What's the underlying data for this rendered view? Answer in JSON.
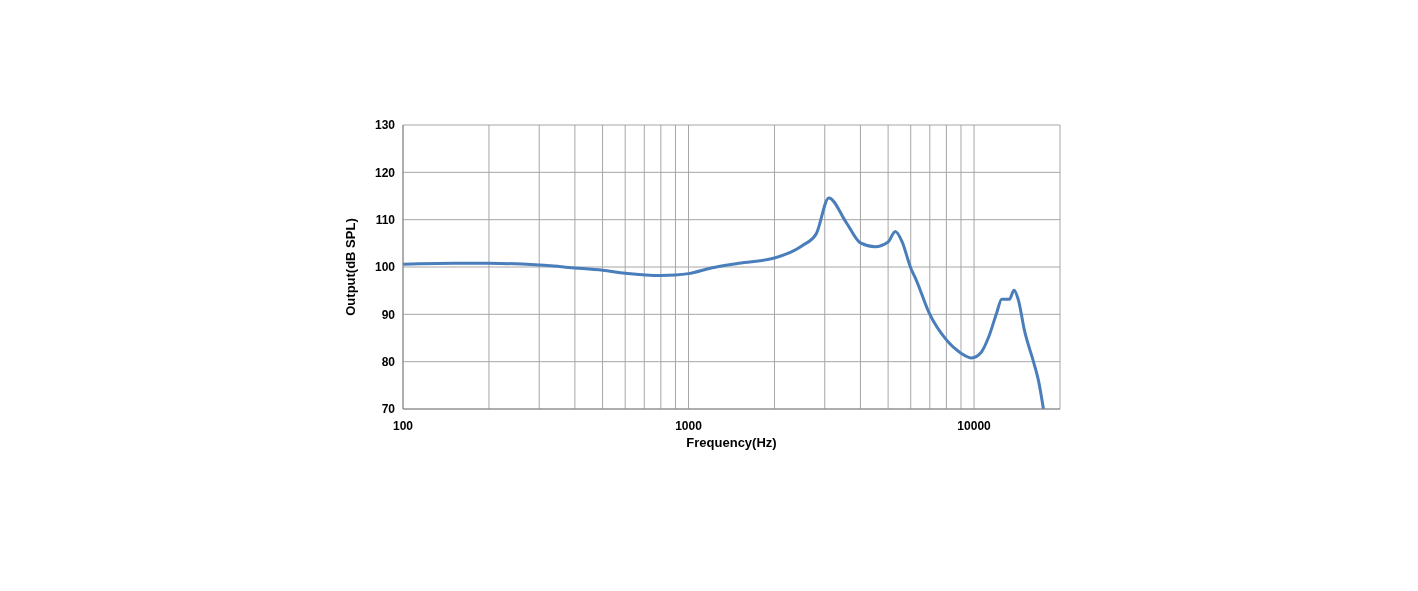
{
  "chart_data": {
    "type": "line",
    "xlabel": "Frequency(Hz)",
    "ylabel": "Output(dB  SPL)",
    "log": "x",
    "grid": true,
    "marker": "none",
    "line_style": "solid",
    "xlim": [
      100,
      20000
    ],
    "ylim": [
      70,
      130
    ],
    "xticks": [
      100,
      {
        "value": 200,
        "label": null
      },
      {
        "value": 300,
        "label": null
      },
      {
        "value": 400,
        "label": null
      },
      {
        "value": 500,
        "label": null
      },
      {
        "value": 600,
        "label": null
      },
      {
        "value": 700,
        "label": null
      },
      {
        "value": 800,
        "label": null
      },
      {
        "value": 900,
        "label": null
      },
      1000,
      {
        "value": 2000,
        "label": null
      },
      {
        "value": 3000,
        "label": null
      },
      {
        "value": 4000,
        "label": null
      },
      {
        "value": 5000,
        "label": null
      },
      {
        "value": 6000,
        "label": null
      },
      {
        "value": 7000,
        "label": null
      },
      {
        "value": 8000,
        "label": null
      },
      {
        "value": 9000,
        "label": null
      },
      10000,
      {
        "value": 20000,
        "label": null
      }
    ],
    "yticks": [
      70,
      80,
      90,
      100,
      110,
      120,
      130
    ],
    "x": [
      100,
      150,
      200,
      300,
      400,
      500,
      600,
      800,
      900,
      1000,
      1200,
      1500,
      2000,
      2500,
      2800,
      3100,
      3560,
      4000,
      4500,
      5000,
      5300,
      5600,
      6000,
      6270,
      6960,
      8000,
      9000,
      9800,
      10600,
      11250,
      12000,
      12500,
      13300,
      13800,
      14300,
      15000,
      16200,
      16800,
      17500
    ],
    "series": [
      {
        "color": "#4a7ebb",
        "values": [
          100.6,
          100.8,
          100.8,
          100.4,
          99.8,
          99.3,
          98.7,
          98.2,
          98.3,
          98.6,
          99.8,
          100.8,
          101.9,
          104.5,
          107,
          114.6,
          109.5,
          105.1,
          104.3,
          105.3,
          107.5,
          105.3,
          99.8,
          97.3,
          90.3,
          84.6,
          81.8,
          80.8,
          82.0,
          85.2,
          90.3,
          93.2,
          93.2,
          95.1,
          93.0,
          86.7,
          79.7,
          76.1,
          70
        ]
      }
    ]
  }
}
